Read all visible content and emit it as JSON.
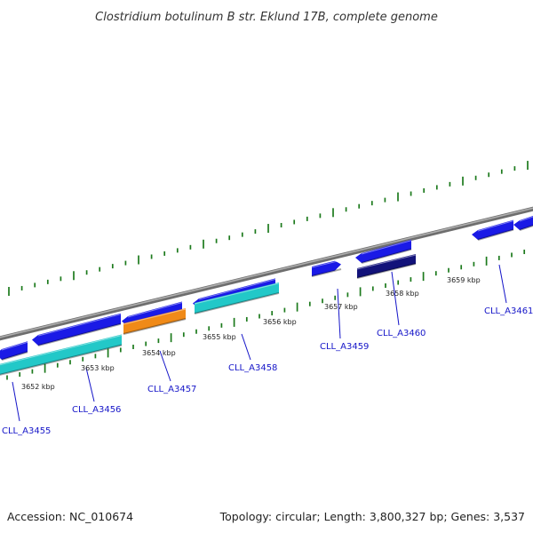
{
  "title": "Clostridium botulinum B str. Eklund 17B, complete genome",
  "footer": {
    "accession": "Accession: NC_010674",
    "summary": "Topology: circular; Length: 3,800,327 bp; Genes: 3,537"
  },
  "colors": {
    "backbone": "#8c8c8c",
    "tick": "#1c7a1c",
    "gene_blue": "#1a1ae6",
    "gene_cyan": "#22c8c8",
    "gene_orange": "#f08a18",
    "gene_navy": "#12127a",
    "label": "#1515c8"
  },
  "kbp_labels": [
    "3652 kbp",
    "3653 kbp",
    "3654 kbp",
    "3655 kbp",
    "3656 kbp",
    "3657 kbp",
    "3658 kbp",
    "3659 kbp"
  ],
  "gene_labels": [
    "CLL_A3455",
    "CLL_A3456",
    "CLL_A3457",
    "CLL_A3458",
    "CLL_A3459",
    "CLL_A3460",
    "CLL_A3461"
  ],
  "genes": [
    {
      "color": "gene_blue",
      "ring": "outer",
      "dir": "rev"
    },
    {
      "color": "gene_blue",
      "ring": "outer",
      "dir": "rev"
    },
    {
      "color": "gene_blue",
      "ring": "outer",
      "dir": "rev"
    },
    {
      "color": "gene_blue",
      "ring": "outer",
      "dir": "rev"
    },
    {
      "color": "gene_blue",
      "ring": "outer",
      "dir": "fwd"
    },
    {
      "color": "gene_blue",
      "ring": "outer",
      "dir": "rev"
    },
    {
      "color": "gene_blue",
      "ring": "outer",
      "dir": "rev"
    },
    {
      "color": "gene_blue",
      "ring": "outer",
      "dir": "rev"
    },
    {
      "color": "gene_cyan",
      "ring": "inner",
      "dir": "none"
    },
    {
      "color": "gene_orange",
      "ring": "inner",
      "dir": "none"
    },
    {
      "color": "gene_cyan",
      "ring": "inner",
      "dir": "none"
    },
    {
      "color": "gene_navy",
      "ring": "inner",
      "dir": "none"
    }
  ]
}
